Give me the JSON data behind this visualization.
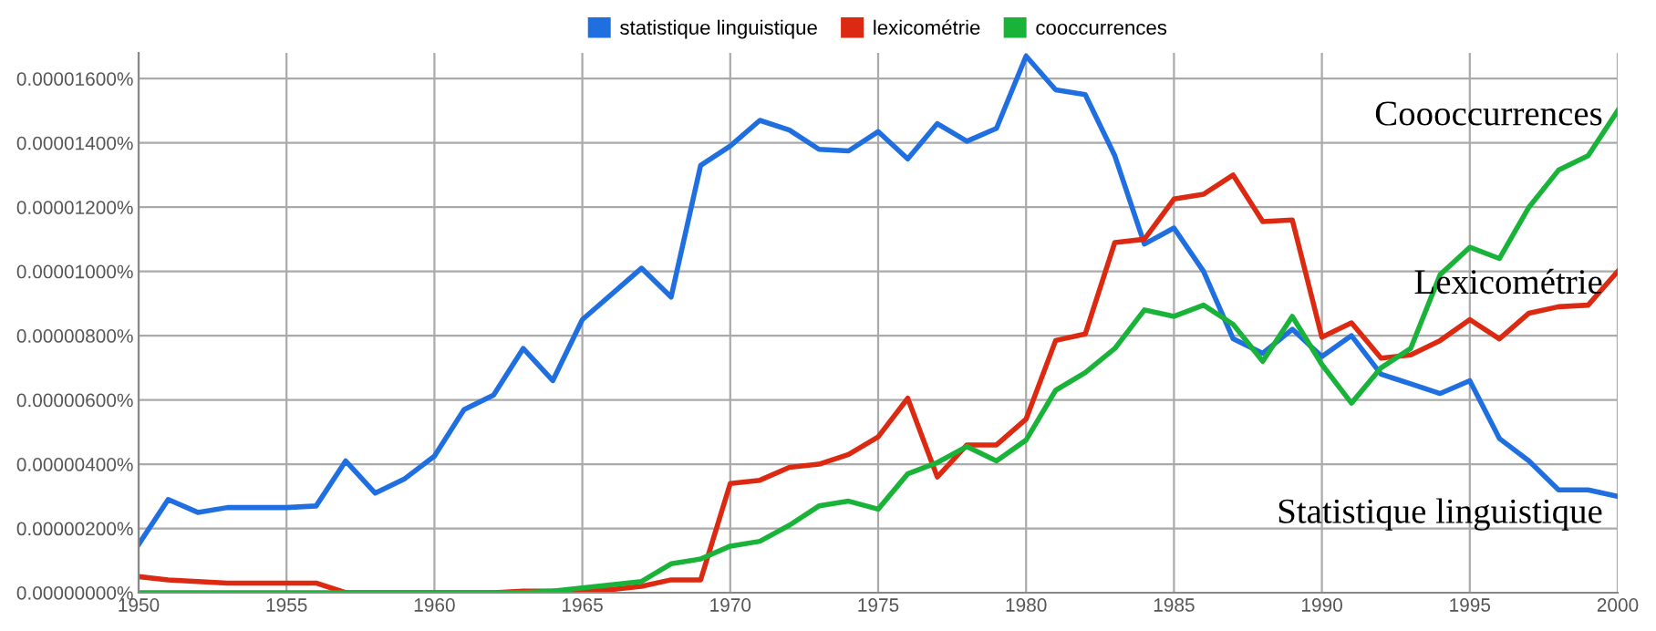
{
  "chart_data": {
    "type": "line",
    "x": [
      1950,
      1951,
      1952,
      1953,
      1954,
      1955,
      1956,
      1957,
      1958,
      1959,
      1960,
      1961,
      1962,
      1963,
      1964,
      1965,
      1966,
      1967,
      1968,
      1969,
      1970,
      1971,
      1972,
      1973,
      1974,
      1975,
      1976,
      1977,
      1978,
      1979,
      1980,
      1981,
      1982,
      1983,
      1984,
      1985,
      1986,
      1987,
      1988,
      1989,
      1990,
      1991,
      1992,
      1993,
      1994,
      1995,
      1996,
      1997,
      1998,
      1999,
      2000
    ],
    "series": [
      {
        "name": "statistique linguistique",
        "color": "#1f6fe0",
        "values": [
          1.5e-06,
          2.9e-06,
          2.5e-06,
          2.65e-06,
          2.65e-06,
          2.65e-06,
          2.7e-06,
          4.1e-06,
          3.1e-06,
          3.55e-06,
          4.25e-06,
          5.7e-06,
          6.15e-06,
          7.6e-06,
          6.6e-06,
          8.5e-06,
          9.3e-06,
          1.01e-05,
          9.2e-06,
          1.33e-05,
          1.39e-05,
          1.47e-05,
          1.44e-05,
          1.38e-05,
          1.375e-05,
          1.435e-05,
          1.35e-05,
          1.46e-05,
          1.405e-05,
          1.445e-05,
          1.67e-05,
          1.565e-05,
          1.55e-05,
          1.36e-05,
          1.085e-05,
          1.135e-05,
          1e-05,
          7.9e-06,
          7.45e-06,
          8.2e-06,
          7.35e-06,
          8e-06,
          6.8e-06,
          6.5e-06,
          6.2e-06,
          6.6e-06,
          4.8e-06,
          4.1e-06,
          3.2e-06,
          3.2e-06,
          3e-06
        ]
      },
      {
        "name": "lexicométrie",
        "color": "#dc2a12",
        "values": [
          5e-07,
          4e-07,
          3.5e-07,
          3e-07,
          3e-07,
          3e-07,
          3e-07,
          0,
          0,
          0,
          0,
          0,
          0,
          5e-08,
          5e-08,
          5e-08,
          1e-07,
          2e-07,
          4e-07,
          4e-07,
          3.4e-06,
          3.5e-06,
          3.9e-06,
          4e-06,
          4.3e-06,
          4.85e-06,
          6.05e-06,
          3.6e-06,
          4.6e-06,
          4.6e-06,
          5.4e-06,
          7.85e-06,
          8.05e-06,
          1.09e-05,
          1.1e-05,
          1.225e-05,
          1.24e-05,
          1.3e-05,
          1.155e-05,
          1.16e-05,
          7.95e-06,
          8.4e-06,
          7.3e-06,
          7.4e-06,
          7.85e-06,
          8.5e-06,
          7.9e-06,
          8.7e-06,
          8.9e-06,
          8.95e-06,
          1e-05
        ]
      },
      {
        "name": "cooccurrences",
        "color": "#19b33a",
        "values": [
          0,
          0,
          0,
          0,
          0,
          0,
          0,
          0,
          0,
          0,
          0,
          0,
          0,
          0,
          5e-08,
          1.5e-07,
          2.5e-07,
          3.5e-07,
          9e-07,
          1.05e-06,
          1.45e-06,
          1.6e-06,
          2.1e-06,
          2.7e-06,
          2.85e-06,
          2.6e-06,
          3.7e-06,
          4.05e-06,
          4.55e-06,
          4.1e-06,
          4.75e-06,
          6.3e-06,
          6.85e-06,
          7.6e-06,
          8.8e-06,
          8.6e-06,
          8.95e-06,
          8.35e-06,
          7.2e-06,
          8.6e-06,
          7.1e-06,
          5.9e-06,
          7e-06,
          7.6e-06,
          9.9e-06,
          1.075e-05,
          1.04e-05,
          1.2e-05,
          1.315e-05,
          1.36e-05,
          1.5e-05
        ]
      }
    ],
    "xlim": [
      1950,
      2000
    ],
    "xticks": [
      1950,
      1955,
      1960,
      1965,
      1970,
      1975,
      1980,
      1985,
      1990,
      1995,
      2000
    ],
    "ylim": [
      0,
      1.68e-05
    ],
    "yticks": [
      {
        "value": 0,
        "label": "0.00000000%"
      },
      {
        "value": 2e-06,
        "label": "0.00000200%"
      },
      {
        "value": 4e-06,
        "label": "0.00000400%"
      },
      {
        "value": 6e-06,
        "label": "0.00000600%"
      },
      {
        "value": 8e-06,
        "label": "0.00000800%"
      },
      {
        "value": 1e-05,
        "label": "0.00001000%"
      },
      {
        "value": 1.2e-05,
        "label": "0.00001200%"
      },
      {
        "value": 1.4e-05,
        "label": "0.00001400%"
      },
      {
        "value": 1.6e-05,
        "label": "0.00001600%"
      }
    ],
    "annotations": [
      "Coooccurrences",
      "Lexicométrie",
      "Statistique linguistique"
    ],
    "grid": true,
    "legend": "top",
    "marker": "none",
    "line_style": "solid"
  }
}
